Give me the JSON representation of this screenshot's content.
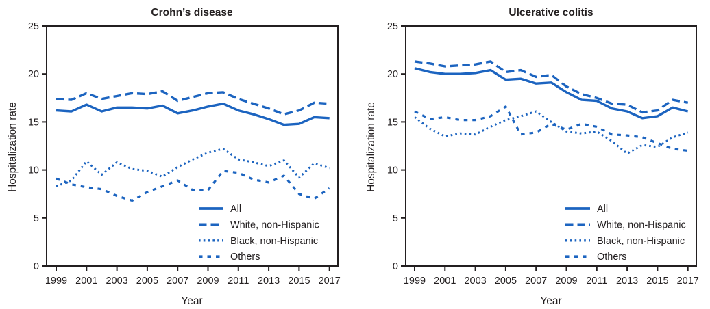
{
  "figure": {
    "accent_color": "#1c64c0",
    "axis_color": "#231f20",
    "background": "#ffffff"
  },
  "chart_data": [
    {
      "type": "line",
      "title": "Crohn’s disease",
      "xlabel": "Year",
      "ylabel": "Hospitalization rate",
      "x": [
        1999,
        2000,
        2001,
        2002,
        2003,
        2004,
        2005,
        2006,
        2007,
        2008,
        2009,
        2010,
        2011,
        2012,
        2013,
        2014,
        2015,
        2016,
        2017
      ],
      "xtick_labels": [
        "1999",
        "2001",
        "2003",
        "2005",
        "2007",
        "2009",
        "2011",
        "2013",
        "2015",
        "2017"
      ],
      "ylim": [
        0,
        25
      ],
      "yticks": [
        0,
        5,
        10,
        15,
        20,
        25
      ],
      "grid": false,
      "legend_position": "inside lower right",
      "series": [
        {
          "name": "All",
          "line_style": "solid",
          "values": [
            16.2,
            16.1,
            16.8,
            16.1,
            16.5,
            16.5,
            16.4,
            16.7,
            15.9,
            16.2,
            16.6,
            16.9,
            16.2,
            15.8,
            15.3,
            14.7,
            14.8,
            15.5,
            15.4
          ]
        },
        {
          "name": "White, non-Hispanic",
          "line_style": "dashed",
          "values": [
            17.4,
            17.3,
            18.0,
            17.4,
            17.7,
            18.0,
            17.9,
            18.2,
            17.2,
            17.6,
            18.0,
            18.1,
            17.4,
            16.9,
            16.4,
            15.8,
            16.2,
            17.0,
            16.9
          ]
        },
        {
          "name": "Black, non-Hispanic",
          "line_style": "dotted",
          "values": [
            8.3,
            8.9,
            10.9,
            9.5,
            10.8,
            10.1,
            9.9,
            9.3,
            10.3,
            11.1,
            11.8,
            12.2,
            11.1,
            10.8,
            10.4,
            11.0,
            9.2,
            10.7,
            10.2
          ]
        },
        {
          "name": "Others",
          "line_style": "short-dash",
          "values": [
            9.1,
            8.5,
            8.2,
            8.0,
            7.3,
            6.8,
            7.7,
            8.3,
            8.9,
            7.9,
            7.9,
            9.9,
            9.7,
            9.0,
            8.7,
            9.4,
            7.5,
            7.0,
            8.1
          ]
        }
      ]
    },
    {
      "type": "line",
      "title": "Ulcerative colitis",
      "xlabel": "Year",
      "ylabel": "Hospitalization rate",
      "x": [
        1999,
        2000,
        2001,
        2002,
        2003,
        2004,
        2005,
        2006,
        2007,
        2008,
        2009,
        2010,
        2011,
        2012,
        2013,
        2014,
        2015,
        2016,
        2017
      ],
      "xtick_labels": [
        "1999",
        "2001",
        "2003",
        "2005",
        "2007",
        "2009",
        "2011",
        "2013",
        "2015",
        "2017"
      ],
      "ylim": [
        0,
        25
      ],
      "yticks": [
        0,
        5,
        10,
        15,
        20,
        25
      ],
      "grid": false,
      "legend_position": "inside lower right",
      "series": [
        {
          "name": "All",
          "line_style": "solid",
          "values": [
            20.6,
            20.2,
            20.0,
            20.0,
            20.1,
            20.4,
            19.4,
            19.5,
            19.0,
            19.1,
            18.1,
            17.3,
            17.2,
            16.4,
            16.1,
            15.4,
            15.6,
            16.5,
            16.1
          ]
        },
        {
          "name": "White, non-Hispanic",
          "line_style": "dashed",
          "values": [
            21.3,
            21.1,
            20.8,
            20.9,
            21.0,
            21.3,
            20.2,
            20.4,
            19.7,
            19.9,
            18.7,
            17.9,
            17.5,
            16.9,
            16.8,
            16.0,
            16.2,
            17.3,
            17.0
          ]
        },
        {
          "name": "Black, non-Hispanic",
          "line_style": "dotted",
          "values": [
            15.5,
            14.3,
            13.5,
            13.8,
            13.7,
            14.5,
            15.2,
            15.6,
            16.1,
            15.0,
            14.0,
            13.8,
            14.0,
            13.0,
            11.7,
            12.6,
            12.4,
            13.4,
            13.9
          ]
        },
        {
          "name": "Others",
          "line_style": "short-dash",
          "values": [
            16.1,
            15.3,
            15.5,
            15.2,
            15.2,
            15.6,
            16.6,
            13.7,
            13.9,
            14.8,
            14.2,
            14.8,
            14.5,
            13.7,
            13.6,
            13.4,
            12.8,
            12.2,
            12.0
          ]
        }
      ]
    }
  ]
}
